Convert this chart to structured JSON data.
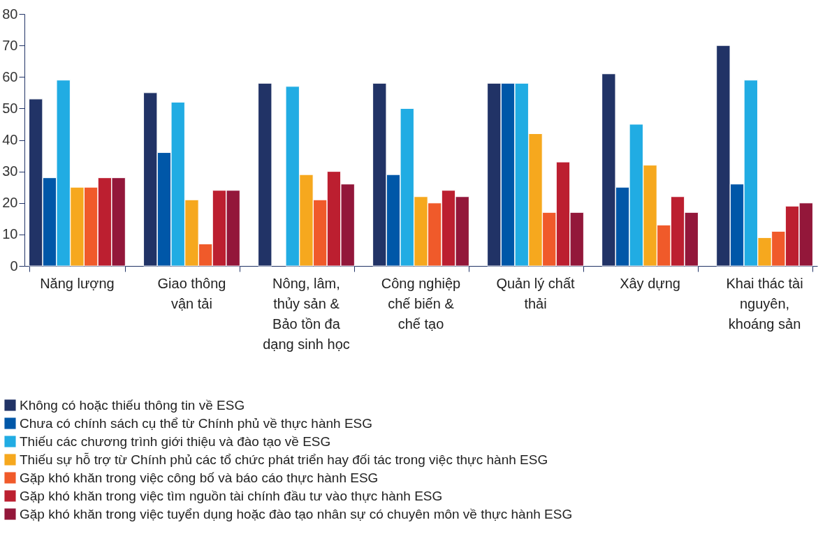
{
  "chart_data": {
    "type": "bar",
    "categories": [
      "Năng lượng",
      "Giao thông vận tải",
      "Nông, lâm, thủy sản & Bảo tồn đa dạng sinh học",
      "Công nghiệp chế biến & chế tạo",
      "Quản lý chất thải",
      "Xây dựng",
      "Khai thác tài nguyên, khoáng sản"
    ],
    "series": [
      {
        "name": "Không có hoặc thiếu thông tin về ESG",
        "color": "#213366",
        "values": [
          53,
          55,
          58,
          58,
          58,
          61,
          70
        ]
      },
      {
        "name": "Chưa có chính sách cụ thể từ Chính phủ về thực hành ESG",
        "color": "#0057a8",
        "values": [
          28,
          36,
          null,
          29,
          58,
          25,
          26
        ]
      },
      {
        "name": "Thiếu các chương trình giới thiệu và đào tạo về ESG",
        "color": "#21ace3",
        "values": [
          59,
          52,
          57,
          50,
          58,
          45,
          59
        ]
      },
      {
        "name": "Thiếu sự hỗ trợ từ Chính phủ các tổ chức phát triển hay đối tác trong việc thực hành ESG",
        "color": "#f6a81e",
        "values": [
          25,
          21,
          29,
          22,
          42,
          32,
          9
        ]
      },
      {
        "name": "Gặp khó khăn trong việc công bố và báo cáo thực hành ESG",
        "color": "#f05a2a",
        "values": [
          25,
          7,
          21,
          20,
          17,
          13,
          11
        ]
      },
      {
        "name": "Gặp khó khăn trong việc tìm nguồn tài chính đầu tư vào thực hành ESG",
        "color": "#bc1f30",
        "values": [
          28,
          24,
          30,
          24,
          33,
          22,
          19
        ]
      },
      {
        "name": "Gặp khó khăn trong việc tuyển dụng hoặc đào tạo nhân sự có chuyên môn về thực hành ESG",
        "color": "#93173a",
        "values": [
          28,
          24,
          26,
          22,
          17,
          17,
          20
        ]
      }
    ],
    "ylim": [
      0,
      80
    ],
    "yticks": [
      0,
      10,
      20,
      30,
      40,
      50,
      60,
      70,
      80
    ],
    "grid": false,
    "legend": "bottom left"
  }
}
